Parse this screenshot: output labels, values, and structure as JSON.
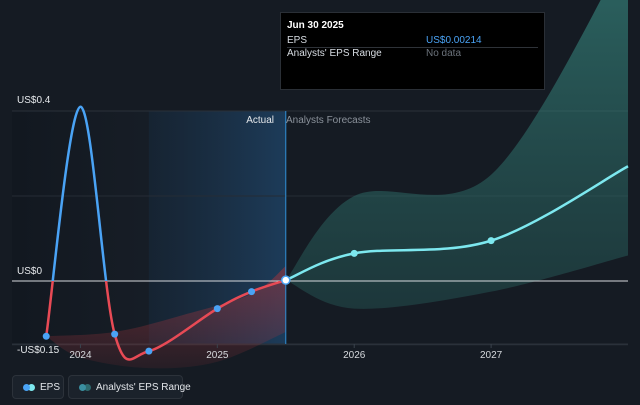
{
  "tooltip": {
    "date": "Jun 30 2025",
    "rows": [
      {
        "label": "EPS",
        "value": "US$0.00214"
      },
      {
        "label": "Analysts' EPS Range",
        "value": "No data"
      }
    ]
  },
  "legend": {
    "eps_label": "EPS",
    "range_label": "Analysts' EPS Range",
    "eps_colors": [
      "#4aa3f5",
      "#7de8ef"
    ],
    "range_colors": [
      "#3a8fa0",
      "#2e6a6e"
    ]
  },
  "chart_data": {
    "type": "line",
    "period_labels": {
      "actual": "Actual",
      "forecast": "Analysts Forecasts"
    },
    "y_ticks": [
      {
        "value": 0.4,
        "label": "US$0.4"
      },
      {
        "value": 0,
        "label": "US$0"
      },
      {
        "value": -0.15,
        "label": "-US$0.15"
      }
    ],
    "x_ticks": [
      {
        "value": 2024.0,
        "label": "2024"
      },
      {
        "value": 2025.0,
        "label": "2025"
      },
      {
        "value": 2026.0,
        "label": "2026"
      },
      {
        "value": 2027.0,
        "label": "2027"
      }
    ],
    "xlim": [
      2023.5,
      2028.0
    ],
    "ylim": [
      -0.15,
      0.4
    ],
    "divider_x": 2025.5,
    "highlight_x": [
      2024.5,
      2025.5
    ],
    "series": [
      {
        "name": "EPS",
        "role": "actual",
        "x": [
          2023.75,
          2024.0,
          2024.25,
          2024.5,
          2025.0,
          2025.25,
          2025.5
        ],
        "y": [
          -0.13,
          0.41,
          -0.125,
          -0.165,
          -0.065,
          -0.025,
          0.002
        ],
        "markers": [
          true,
          false,
          true,
          true,
          true,
          true,
          true
        ]
      },
      {
        "name": "EPS",
        "role": "forecast",
        "x": [
          2025.5,
          2026.0,
          2027.0,
          2028.0
        ],
        "y": [
          0.002,
          0.065,
          0.095,
          0.27
        ],
        "markers": [
          true,
          true,
          true,
          false
        ]
      }
    ],
    "range": {
      "name": "Analysts' EPS Range",
      "x": [
        2025.5,
        2026.0,
        2027.0,
        2028.0
      ],
      "high": [
        0.002,
        0.2,
        0.25,
        0.78
      ],
      "low": [
        0.002,
        -0.065,
        -0.025,
        0.06
      ]
    }
  }
}
